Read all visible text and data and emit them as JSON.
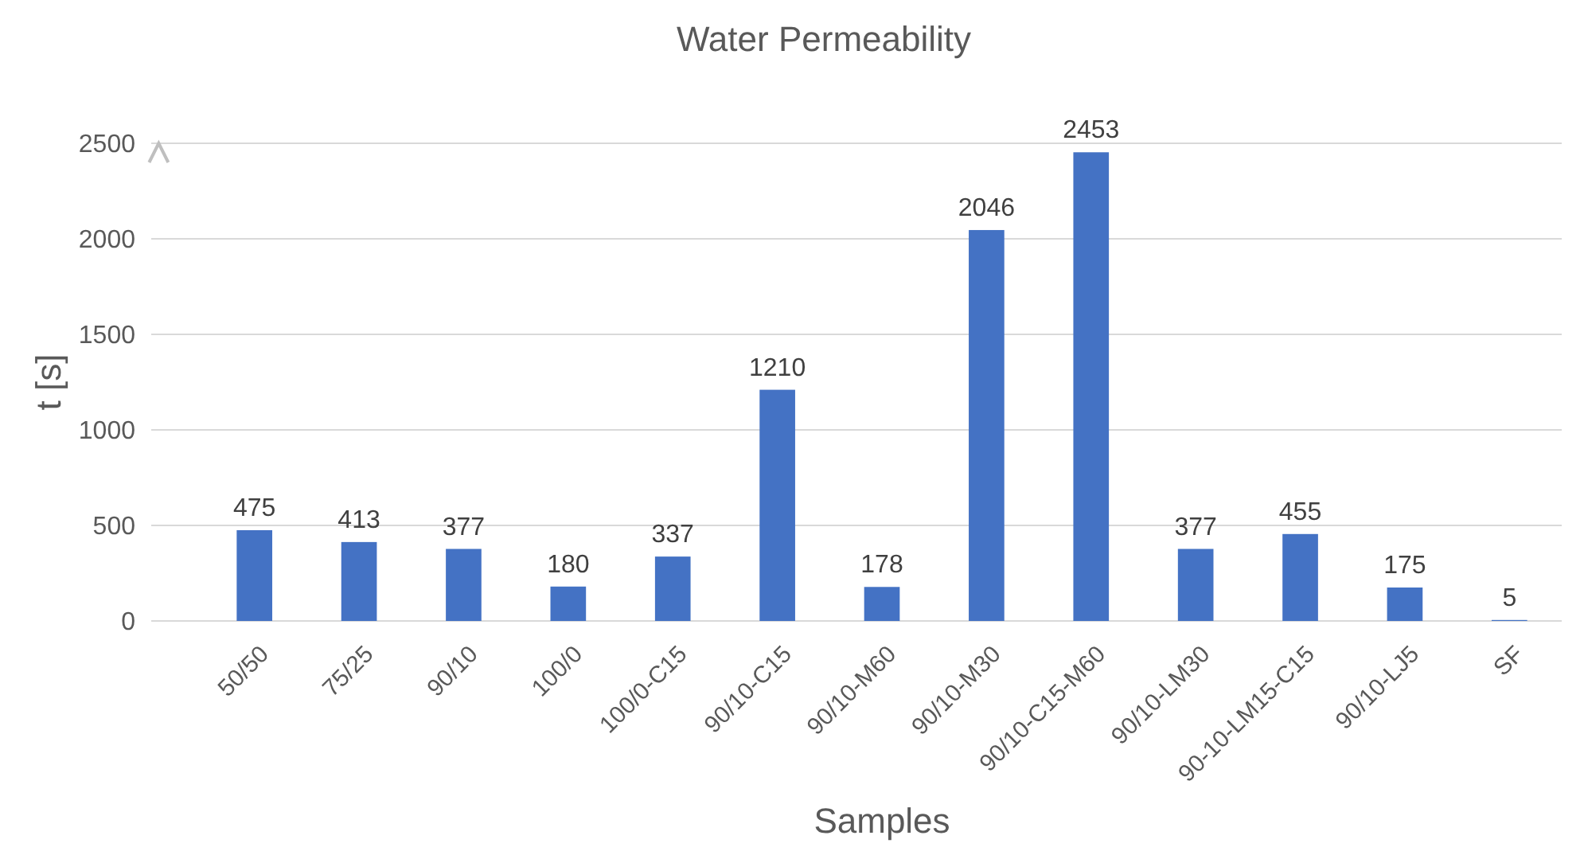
{
  "chart_data": {
    "type": "bar",
    "title": "Water Permeability",
    "xlabel": "Samples",
    "ylabel": "t [s]",
    "categories": [
      "50/50",
      "75/25",
      "90/10",
      "100/0",
      "100/0-C15",
      "90/10-C15",
      "90/10-M60",
      "90/10-M30",
      "90/10-C15-M60",
      "90/10-LM30",
      "90-10-LM15-C15",
      "90/10-LJ5",
      "SF"
    ],
    "values": [
      475,
      413,
      377,
      180,
      337,
      1210,
      178,
      2046,
      2453,
      377,
      455,
      175,
      5
    ],
    "color": "#4472c4",
    "ylim": [
      0,
      2500
    ],
    "yticks": [
      0,
      500,
      1000,
      1500,
      2000,
      2500
    ],
    "grid": "y",
    "data_labels": true
  }
}
